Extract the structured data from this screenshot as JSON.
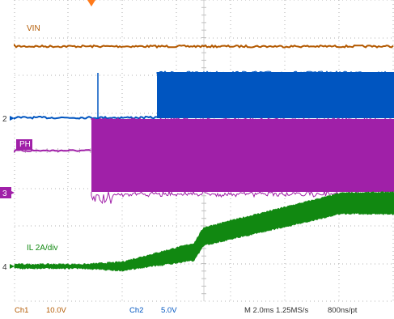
{
  "waveforms": [
    {
      "label": "VIN",
      "color": "#b35900"
    },
    {
      "label": "PH",
      "color": "#a020a8"
    },
    {
      "label": "IL 2A/div",
      "color": "#118811"
    }
  ],
  "channel_markers": [
    {
      "text": "2",
      "color": "#0055c0"
    },
    {
      "text": "3",
      "color": "#a020a8"
    },
    {
      "text": "4",
      "color": "#118811"
    }
  ],
  "readout": {
    "ch1_name": "Ch1",
    "ch1_scale": "10.0V",
    "ch2_name": "Ch2",
    "ch2_scale": "5.0V",
    "timebase": "M 2.0ms 1.25MS/s",
    "resolution": "800ns/pt"
  },
  "colors": {
    "ch1": "#b35900",
    "ch2": "#0055c0",
    "ch3": "#a020a8",
    "ch4": "#118811",
    "grid": "#b0b0b0",
    "trigger": "#ff7a1a"
  }
}
